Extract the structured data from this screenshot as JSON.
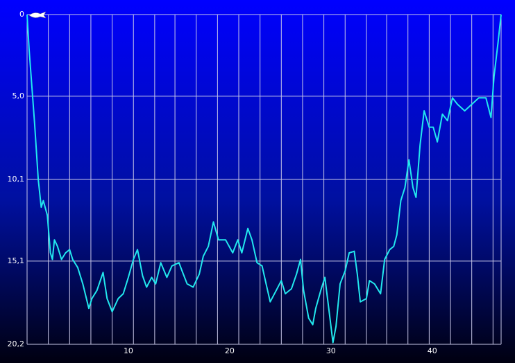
{
  "chart_data": {
    "type": "line",
    "xlim": [
      0,
      46.8
    ],
    "ylim": [
      0,
      20.2
    ],
    "y_inverted": true,
    "xticks": [
      10,
      20,
      30,
      40
    ],
    "xgrid": [
      2.1,
      4.2,
      6.3,
      8.4,
      10.5,
      12.6,
      14.6,
      16.7,
      18.8,
      20.9,
      23.0,
      25.1,
      27.2,
      29.3,
      31.4,
      33.5,
      35.5,
      37.6,
      39.7,
      41.8,
      43.9,
      46.0
    ],
    "yticks": [
      0,
      {
        "value": 5.0,
        "label": "5,0"
      },
      {
        "value": 10.1,
        "label": "10,1"
      },
      {
        "value": 15.1,
        "label": "15,1"
      },
      {
        "value": 20.2,
        "label": "20,2"
      }
    ],
    "grid": true,
    "series": [
      {
        "color": "#22e8ee",
        "x": [
          0,
          0.2,
          0.75,
          1.1,
          1.4,
          1.6,
          2.0,
          2.3,
          2.5,
          2.7,
          3.0,
          3.4,
          3.8,
          4.2,
          4.5,
          5.0,
          5.5,
          6.1,
          6.4,
          6.9,
          7.5,
          7.9,
          8.4,
          9.0,
          9.5,
          10.0,
          10.5,
          10.9,
          11.4,
          11.8,
          12.3,
          12.7,
          13.2,
          13.8,
          14.3,
          15.0,
          15.3,
          15.8,
          16.4,
          17.0,
          17.4,
          17.9,
          18.4,
          18.9,
          19.6,
          20.3,
          20.8,
          21.2,
          21.8,
          22.2,
          22.7,
          23.2,
          23.6,
          24.0,
          24.6,
          25.1,
          25.5,
          26.1,
          26.6,
          27.0,
          27.3,
          27.8,
          28.2,
          28.5,
          29.0,
          29.4,
          29.9,
          30.2,
          30.5,
          30.9,
          31.4,
          31.8,
          32.3,
          32.6,
          32.9,
          33.5,
          33.8,
          34.3,
          34.9,
          35.3,
          35.8,
          36.2,
          36.5,
          36.9,
          37.3,
          37.7,
          38.1,
          38.4,
          38.8,
          39.2,
          39.7,
          40.1,
          40.5,
          41.0,
          41.5,
          42.0,
          42.5,
          43.2,
          43.9,
          44.6,
          45.3,
          45.8,
          46.1,
          46.5,
          46.8
        ],
        "values": [
          0,
          2.1,
          6.7,
          10.1,
          11.8,
          11.4,
          12.3,
          14.6,
          15.0,
          13.8,
          14.2,
          15.0,
          14.6,
          14.4,
          15.0,
          15.5,
          16.5,
          18.0,
          17.4,
          16.9,
          15.8,
          17.4,
          18.2,
          17.4,
          17.1,
          16.1,
          15.0,
          14.4,
          16.0,
          16.7,
          16.1,
          16.5,
          15.2,
          16.1,
          15.4,
          15.2,
          15.7,
          16.5,
          16.7,
          15.9,
          14.8,
          14.2,
          12.7,
          13.8,
          13.8,
          14.6,
          13.8,
          14.6,
          13.1,
          13.8,
          15.2,
          15.4,
          16.5,
          17.6,
          16.9,
          16.3,
          17.1,
          16.8,
          15.9,
          15.0,
          16.9,
          18.6,
          19.0,
          18.0,
          16.9,
          16.1,
          18.6,
          20.1,
          19.1,
          16.5,
          15.7,
          14.6,
          14.5,
          15.9,
          17.6,
          17.4,
          16.3,
          16.5,
          17.1,
          15.0,
          14.4,
          14.2,
          13.5,
          11.4,
          10.6,
          8.9,
          10.6,
          11.2,
          8.0,
          5.9,
          6.9,
          6.9,
          7.8,
          6.1,
          6.5,
          5.1,
          5.5,
          5.9,
          5.5,
          5.1,
          5.1,
          6.3,
          3.8,
          1.7,
          0
        ]
      }
    ]
  }
}
